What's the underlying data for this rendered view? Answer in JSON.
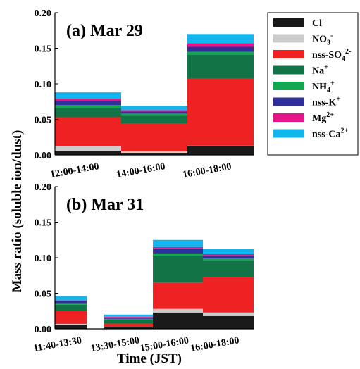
{
  "chart_data": {
    "type": "bar",
    "stacked": true,
    "xlabel": "Time (JST)",
    "ylabel": "Mass ratio (soluble ion/dust)",
    "legend": {
      "placement": "top-right",
      "entries": [
        {
          "name": "Cl",
          "sup": "-",
          "sub": "",
          "color": "#1a1a1a"
        },
        {
          "name": "NO",
          "sub": "3",
          "sup": "-",
          "color": "#cccccc"
        },
        {
          "name": "nss-SO",
          "sub": "4",
          "sup": "2-",
          "color": "#ee2222"
        },
        {
          "name": "Na",
          "sup": "+",
          "sub": "",
          "color": "#127446"
        },
        {
          "name": "NH",
          "sub": "4",
          "sup": "+",
          "color": "#15a651"
        },
        {
          "name": "nss-K",
          "sup": "+",
          "sub": "",
          "color": "#2f2f9a"
        },
        {
          "name": "Mg",
          "sup": "2+",
          "sub": "",
          "color": "#e6168a"
        },
        {
          "name": "nss-Ca",
          "sup": "2+",
          "sub": "",
          "color": "#12b6ee"
        }
      ]
    },
    "panels": [
      {
        "title": "(a) Mar 29",
        "ylim": [
          0,
          0.2
        ],
        "yticks": [
          "0.00",
          "0.05",
          "0.10",
          "0.15",
          "0.20"
        ],
        "categories": [
          "12:00-14:00",
          "14:00-16:00",
          "16:00-18:00"
        ],
        "series": [
          {
            "name": "Cl-",
            "values": [
              0.006,
              0.003,
              0.012
            ]
          },
          {
            "name": "NO3-",
            "values": [
              0.006,
              0.002,
              0.001
            ]
          },
          {
            "name": "nss-SO42-",
            "values": [
              0.041,
              0.039,
              0.094
            ]
          },
          {
            "name": "Na+",
            "values": [
              0.013,
              0.011,
              0.034
            ]
          },
          {
            "name": "NH4+",
            "values": [
              0.004,
              0.003,
              0.004
            ]
          },
          {
            "name": "nss-K+",
            "values": [
              0.006,
              0.003,
              0.007
            ]
          },
          {
            "name": "Mg2+",
            "values": [
              0.003,
              0.002,
              0.005
            ]
          },
          {
            "name": "nss-Ca2+",
            "values": [
              0.009,
              0.006,
              0.013
            ]
          }
        ]
      },
      {
        "title": "(b) Mar 31",
        "ylim": [
          0,
          0.2
        ],
        "yticks": [
          "0.00",
          "0.05",
          "0.10",
          "0.15",
          "0.20"
        ],
        "categories": [
          "11:40-13:30",
          "13:30-15:00",
          "15:00-16:00",
          "16:00-18:00"
        ],
        "widths": [
          0.185,
          0.137,
          0.085,
          0.255
        ],
        "series": [
          {
            "name": "Cl-",
            "values": [
              0.006,
              0.002,
              0.023,
              0.018
            ]
          },
          {
            "name": "NO3-",
            "values": [
              0.001,
              0.001,
              0.005,
              0.005
            ]
          },
          {
            "name": "nss-SO42-",
            "values": [
              0.018,
              0.004,
              0.037,
              0.05
            ]
          },
          {
            "name": "Na+",
            "values": [
              0.009,
              0.005,
              0.037,
              0.023
            ]
          },
          {
            "name": "NH4+",
            "values": [
              0.002,
              0.002,
              0.004,
              0.003
            ]
          },
          {
            "name": "nss-K+",
            "values": [
              0.003,
              0.002,
              0.007,
              0.004
            ]
          },
          {
            "name": "Mg2+",
            "values": [
              0.001,
              0.001,
              0.002,
              0.002
            ]
          },
          {
            "name": "nss-Ca2+",
            "values": [
              0.006,
              0.003,
              0.01,
              0.007
            ]
          }
        ]
      }
    ]
  }
}
